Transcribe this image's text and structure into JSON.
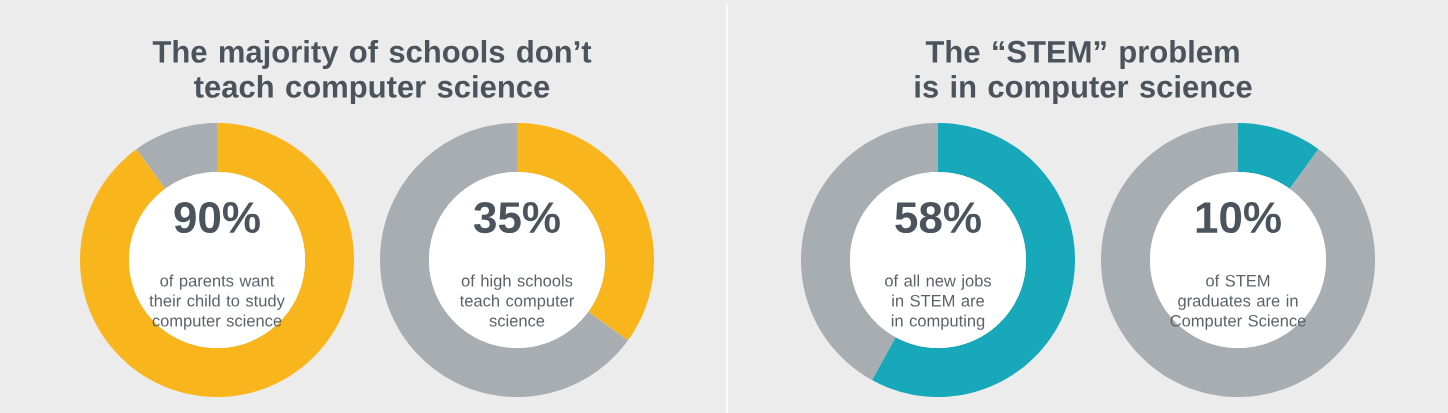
{
  "chart_data": [
    {
      "type": "donut",
      "title": "The majority of schools don’t teach computer science",
      "categories": [
        null,
        null
      ],
      "values": [
        90,
        10
      ],
      "colors": [
        "#f9b51c",
        "#a8adb1"
      ],
      "value_labels": [
        "90%",
        null
      ],
      "annotations": [
        "of parents want their child to study computer science"
      ]
    },
    {
      "type": "donut",
      "categories": [
        null,
        null
      ],
      "values": [
        35,
        65
      ],
      "colors": [
        "#f9b51c",
        "#a8adb1"
      ],
      "value_labels": [
        "35%",
        null
      ],
      "annotations": [
        "of high schools teach computer science"
      ]
    },
    {
      "type": "donut",
      "title": "The “STEM” problem is in computer science",
      "categories": [
        null,
        null
      ],
      "values": [
        58,
        42
      ],
      "colors": [
        "#17a9b9",
        "#a8adb1"
      ],
      "value_labels": [
        "58%",
        null
      ],
      "annotations": [
        "of all new jobs in STEM are in computing"
      ]
    },
    {
      "type": "donut",
      "categories": [
        null,
        null
      ],
      "values": [
        10,
        90
      ],
      "colors": [
        "#17a9b9",
        "#a8adb1"
      ],
      "value_labels": [
        "10%",
        null
      ],
      "annotations": [
        "of STEM graduates are in Computer Science"
      ]
    }
  ]
}
